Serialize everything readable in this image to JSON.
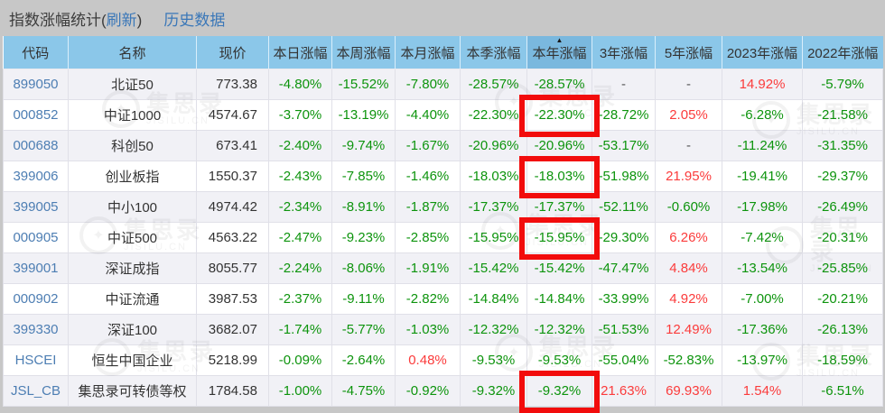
{
  "page": {
    "background": "#c7c7c7"
  },
  "header": {
    "title_prefix": "指数涨幅统计(",
    "refresh_label": "刷新",
    "title_suffix": ")",
    "history_label": "历史数据"
  },
  "table": {
    "sorted_key": "year",
    "sort_icon": "▲",
    "columns": [
      {
        "key": "code",
        "label": "代码"
      },
      {
        "key": "name",
        "label": "名称"
      },
      {
        "key": "price",
        "label": "现价"
      },
      {
        "key": "day",
        "label": "本日涨幅"
      },
      {
        "key": "week",
        "label": "本周涨幅"
      },
      {
        "key": "month",
        "label": "本月涨幅"
      },
      {
        "key": "quarter",
        "label": "本季涨幅"
      },
      {
        "key": "year",
        "label": "本年涨幅"
      },
      {
        "key": "y3",
        "label": "3年涨幅"
      },
      {
        "key": "y5",
        "label": "5年涨幅"
      },
      {
        "key": "y2023",
        "label": "2023年涨幅"
      },
      {
        "key": "y2022",
        "label": "2022年涨幅"
      }
    ],
    "rows": [
      {
        "cells": [
          "899050",
          "北证50",
          "773.38",
          "-4.80%",
          "-15.52%",
          "-7.80%",
          "-28.57%",
          "-28.57%",
          "-",
          "-",
          "14.92%",
          "-5.79%"
        ],
        "highlighted": false
      },
      {
        "cells": [
          "000852",
          "中证1000",
          "4574.67",
          "-3.70%",
          "-13.19%",
          "-4.40%",
          "-22.30%",
          "-22.30%",
          "-28.72%",
          "2.05%",
          "-6.28%",
          "-21.58%"
        ],
        "highlighted": true
      },
      {
        "cells": [
          "000688",
          "科创50",
          "673.41",
          "-2.40%",
          "-9.74%",
          "-1.67%",
          "-20.96%",
          "-20.96%",
          "-53.17%",
          "-",
          "-11.24%",
          "-31.35%"
        ],
        "highlighted": false
      },
      {
        "cells": [
          "399006",
          "创业板指",
          "1550.37",
          "-2.43%",
          "-7.85%",
          "-1.46%",
          "-18.03%",
          "-18.03%",
          "-51.98%",
          "21.95%",
          "-19.41%",
          "-29.37%"
        ],
        "highlighted": true
      },
      {
        "cells": [
          "399005",
          "中小100",
          "4974.42",
          "-2.34%",
          "-8.91%",
          "-1.87%",
          "-17.37%",
          "-17.37%",
          "-52.11%",
          "-0.60%",
          "-17.98%",
          "-26.49%"
        ],
        "highlighted": false
      },
      {
        "cells": [
          "000905",
          "中证500",
          "4563.22",
          "-2.47%",
          "-9.23%",
          "-2.85%",
          "-15.95%",
          "-15.95%",
          "-29.30%",
          "6.26%",
          "-7.42%",
          "-20.31%"
        ],
        "highlighted": true
      },
      {
        "cells": [
          "399001",
          "深证成指",
          "8055.77",
          "-2.24%",
          "-8.06%",
          "-1.91%",
          "-15.42%",
          "-15.42%",
          "-47.47%",
          "4.84%",
          "-13.54%",
          "-25.85%"
        ],
        "highlighted": false
      },
      {
        "cells": [
          "000902",
          "中证流通",
          "3987.53",
          "-2.37%",
          "-9.11%",
          "-2.82%",
          "-14.84%",
          "-14.84%",
          "-33.99%",
          "4.92%",
          "-7.00%",
          "-20.21%"
        ],
        "highlighted": false
      },
      {
        "cells": [
          "399330",
          "深证100",
          "3682.07",
          "-1.74%",
          "-5.77%",
          "-1.03%",
          "-12.32%",
          "-12.32%",
          "-51.53%",
          "12.49%",
          "-17.36%",
          "-26.13%"
        ],
        "highlighted": false
      },
      {
        "cells": [
          "HSCEI",
          "恒生中国企业",
          "5218.99",
          "-0.09%",
          "-2.64%",
          "0.48%",
          "-9.53%",
          "-9.53%",
          "-55.04%",
          "-52.83%",
          "-13.97%",
          "-18.59%"
        ],
        "highlighted": false
      },
      {
        "cells": [
          "JSL_CB",
          "集思录可转债等权",
          "1784.58",
          "-1.00%",
          "-4.75%",
          "-0.92%",
          "-9.32%",
          "-9.32%",
          "21.63%",
          "69.93%",
          "1.54%",
          "-6.51%"
        ],
        "highlighted": true
      }
    ],
    "highlight_column_key": "year"
  },
  "colors": {
    "up_red": "#fb3b3b",
    "down_green": "#0d940d",
    "code_blue": "#4d7eb3",
    "header_bg": "#8bc7e9",
    "header_sorted_bg": "#7ab8de",
    "highlight_box": "#f20c0c"
  },
  "watermark": {
    "text": "集思录",
    "subtext": "JISILU.CN",
    "ring_glyph": "✦"
  }
}
